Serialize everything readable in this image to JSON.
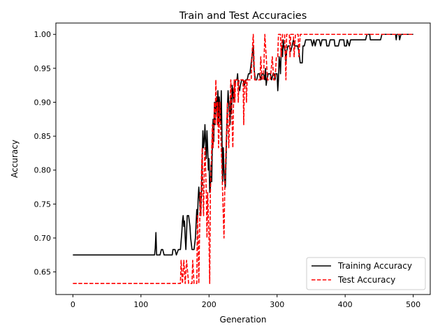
{
  "chart_data": {
    "type": "line",
    "title": "Train and Test Accuracies",
    "xlabel": "Generation",
    "ylabel": "Accuracy",
    "xlim": [
      -25,
      525
    ],
    "ylim": [
      0.6167,
      1.0167
    ],
    "xticks": [
      0,
      100,
      200,
      300,
      400,
      500
    ],
    "xtick_labels": [
      "0",
      "100",
      "200",
      "300",
      "400",
      "500"
    ],
    "yticks": [
      0.65,
      0.7,
      0.75,
      0.8,
      0.85,
      0.9,
      0.95,
      1.0
    ],
    "ytick_labels": [
      "0.65",
      "0.70",
      "0.75",
      "0.80",
      "0.85",
      "0.90",
      "0.95",
      "1.00"
    ],
    "grid": false,
    "legend_position": "lower-right",
    "series": [
      {
        "name": "Training Accuracy",
        "color": "#000000",
        "style": "solid",
        "points": [
          [
            0,
            0.675
          ],
          [
            120,
            0.675
          ],
          [
            121,
            0.685
          ],
          [
            122,
            0.708
          ],
          [
            123,
            0.675
          ],
          [
            128,
            0.675
          ],
          [
            130,
            0.683
          ],
          [
            132,
            0.683
          ],
          [
            134,
            0.675
          ],
          [
            146,
            0.675
          ],
          [
            147,
            0.683
          ],
          [
            150,
            0.683
          ],
          [
            152,
            0.675
          ],
          [
            155,
            0.683
          ],
          [
            158,
            0.683
          ],
          [
            160,
            0.708
          ],
          [
            161,
            0.725
          ],
          [
            162,
            0.733
          ],
          [
            163,
            0.717
          ],
          [
            164,
            0.725
          ],
          [
            165,
            0.7
          ],
          [
            166,
            0.683
          ],
          [
            168,
            0.733
          ],
          [
            170,
            0.733
          ],
          [
            172,
            0.717
          ],
          [
            173,
            0.7
          ],
          [
            175,
            0.683
          ],
          [
            178,
            0.683
          ],
          [
            180,
            0.7
          ],
          [
            182,
            0.742
          ],
          [
            183,
            0.725
          ],
          [
            184,
            0.758
          ],
          [
            185,
            0.775
          ],
          [
            186,
            0.758
          ],
          [
            187,
            0.742
          ],
          [
            188,
            0.733
          ],
          [
            189,
            0.775
          ],
          [
            190,
            0.817
          ],
          [
            191,
            0.858
          ],
          [
            192,
            0.833
          ],
          [
            193,
            0.842
          ],
          [
            194,
            0.867
          ],
          [
            195,
            0.842
          ],
          [
            196,
            0.817
          ],
          [
            197,
            0.858
          ],
          [
            198,
            0.833
          ],
          [
            199,
            0.8
          ],
          [
            200,
            0.817
          ],
          [
            201,
            0.767
          ],
          [
            202,
            0.775
          ],
          [
            203,
            0.808
          ],
          [
            204,
            0.783
          ],
          [
            205,
            0.85
          ],
          [
            206,
            0.875
          ],
          [
            207,
            0.842
          ],
          [
            208,
            0.9
          ],
          [
            209,
            0.867
          ],
          [
            210,
            0.9
          ],
          [
            211,
            0.908
          ],
          [
            212,
            0.883
          ],
          [
            213,
            0.917
          ],
          [
            214,
            0.867
          ],
          [
            215,
            0.908
          ],
          [
            216,
            0.892
          ],
          [
            217,
            0.867
          ],
          [
            218,
            0.917
          ],
          [
            219,
            0.85
          ],
          [
            220,
            0.783
          ],
          [
            221,
            0.833
          ],
          [
            222,
            0.8
          ],
          [
            223,
            0.783
          ],
          [
            224,
            0.775
          ],
          [
            225,
            0.817
          ],
          [
            226,
            0.858
          ],
          [
            227,
            0.892
          ],
          [
            228,
            0.917
          ],
          [
            229,
            0.9
          ],
          [
            230,
            0.883
          ],
          [
            231,
            0.867
          ],
          [
            232,
            0.908
          ],
          [
            233,
            0.883
          ],
          [
            234,
            0.925
          ],
          [
            235,
            0.917
          ],
          [
            236,
            0.9
          ],
          [
            237,
            0.917
          ],
          [
            238,
            0.925
          ],
          [
            239,
            0.933
          ],
          [
            241,
            0.933
          ],
          [
            242,
            0.942
          ],
          [
            243,
            0.925
          ],
          [
            245,
            0.917
          ],
          [
            246,
            0.925
          ],
          [
            248,
            0.933
          ],
          [
            250,
            0.933
          ],
          [
            252,
            0.925
          ],
          [
            254,
            0.933
          ],
          [
            256,
            0.933
          ],
          [
            258,
            0.942
          ],
          [
            260,
            0.942
          ],
          [
            262,
            0.958
          ],
          [
            264,
            0.975
          ],
          [
            265,
            0.983
          ],
          [
            266,
            0.95
          ],
          [
            267,
            0.942
          ],
          [
            268,
            0.933
          ],
          [
            270,
            0.933
          ],
          [
            272,
            0.942
          ],
          [
            274,
            0.942
          ],
          [
            276,
            0.933
          ],
          [
            278,
            0.942
          ],
          [
            280,
            0.942
          ],
          [
            282,
            0.933
          ],
          [
            283,
            0.95
          ],
          [
            284,
            0.925
          ],
          [
            285,
            0.933
          ],
          [
            287,
            0.942
          ],
          [
            290,
            0.942
          ],
          [
            292,
            0.933
          ],
          [
            294,
            0.942
          ],
          [
            296,
            0.942
          ],
          [
            297,
            0.933
          ],
          [
            298,
            0.942
          ],
          [
            300,
            0.942
          ],
          [
            301,
            0.917
          ],
          [
            302,
            0.933
          ],
          [
            303,
            0.967
          ],
          [
            304,
            0.958
          ],
          [
            305,
            0.942
          ],
          [
            306,
            0.975
          ],
          [
            307,
            0.983
          ],
          [
            308,
            0.967
          ],
          [
            309,
            0.992
          ],
          [
            310,
            0.983
          ],
          [
            312,
            0.975
          ],
          [
            313,
            0.958
          ],
          [
            314,
            0.975
          ],
          [
            316,
            0.983
          ],
          [
            318,
            0.983
          ],
          [
            320,
            0.975
          ],
          [
            322,
            0.983
          ],
          [
            324,
            0.992
          ],
          [
            326,
            0.983
          ],
          [
            330,
            0.983
          ],
          [
            332,
            0.975
          ],
          [
            334,
            0.958
          ],
          [
            337,
            0.958
          ],
          [
            338,
            0.983
          ],
          [
            340,
            0.983
          ],
          [
            342,
            0.992
          ],
          [
            350,
            0.992
          ],
          [
            352,
            0.983
          ],
          [
            354,
            0.992
          ],
          [
            356,
            0.983
          ],
          [
            358,
            0.992
          ],
          [
            362,
            0.992
          ],
          [
            364,
            0.983
          ],
          [
            366,
            0.992
          ],
          [
            372,
            0.992
          ],
          [
            373,
            0.983
          ],
          [
            376,
            0.983
          ],
          [
            378,
            0.992
          ],
          [
            384,
            0.992
          ],
          [
            385,
            0.983
          ],
          [
            390,
            0.983
          ],
          [
            392,
            0.992
          ],
          [
            398,
            0.992
          ],
          [
            399,
            0.983
          ],
          [
            402,
            0.983
          ],
          [
            403,
            0.992
          ],
          [
            406,
            0.983
          ],
          [
            408,
            0.992
          ],
          [
            410,
            0.992
          ],
          [
            430,
            0.992
          ],
          [
            432,
            1.0
          ],
          [
            436,
            1.0
          ],
          [
            437,
            0.992
          ],
          [
            452,
            0.992
          ],
          [
            454,
            1.0
          ],
          [
            474,
            1.0
          ],
          [
            475,
            0.992
          ],
          [
            476,
            1.0
          ],
          [
            479,
            1.0
          ],
          [
            480,
            0.992
          ],
          [
            482,
            1.0
          ],
          [
            500,
            1.0
          ]
        ]
      },
      {
        "name": "Test Accuracy",
        "color": "#ff0000",
        "style": "dashed",
        "points": [
          [
            0,
            0.633
          ],
          [
            158,
            0.633
          ],
          [
            159,
            0.667
          ],
          [
            161,
            0.633
          ],
          [
            163,
            0.667
          ],
          [
            165,
            0.633
          ],
          [
            167,
            0.667
          ],
          [
            170,
            0.633
          ],
          [
            175,
            0.633
          ],
          [
            176,
            0.667
          ],
          [
            178,
            0.633
          ],
          [
            182,
            0.633
          ],
          [
            183,
            0.733
          ],
          [
            184,
            0.7
          ],
          [
            185,
            0.633
          ],
          [
            186,
            0.7
          ],
          [
            187,
            0.767
          ],
          [
            188,
            0.733
          ],
          [
            189,
            0.8
          ],
          [
            190,
            0.833
          ],
          [
            191,
            0.767
          ],
          [
            192,
            0.733
          ],
          [
            193,
            0.8
          ],
          [
            194,
            0.833
          ],
          [
            195,
            0.8
          ],
          [
            196,
            0.767
          ],
          [
            197,
            0.7
          ],
          [
            198,
            0.767
          ],
          [
            199,
            0.733
          ],
          [
            200,
            0.7
          ],
          [
            201,
            0.633
          ],
          [
            202,
            0.767
          ],
          [
            203,
            0.8
          ],
          [
            204,
            0.833
          ],
          [
            205,
            0.867
          ],
          [
            206,
            0.833
          ],
          [
            207,
            0.867
          ],
          [
            208,
            0.9
          ],
          [
            209,
            0.867
          ],
          [
            210,
            0.933
          ],
          [
            211,
            0.9
          ],
          [
            212,
            0.867
          ],
          [
            213,
            0.9
          ],
          [
            214,
            0.833
          ],
          [
            215,
            0.867
          ],
          [
            216,
            0.9
          ],
          [
            217,
            0.867
          ],
          [
            218,
            0.833
          ],
          [
            219,
            0.8
          ],
          [
            220,
            0.767
          ],
          [
            221,
            0.733
          ],
          [
            222,
            0.7
          ],
          [
            223,
            0.767
          ],
          [
            224,
            0.8
          ],
          [
            225,
            0.833
          ],
          [
            226,
            0.867
          ],
          [
            227,
            0.9
          ],
          [
            228,
            0.867
          ],
          [
            229,
            0.833
          ],
          [
            230,
            0.867
          ],
          [
            231,
            0.9
          ],
          [
            232,
            0.933
          ],
          [
            233,
            0.9
          ],
          [
            234,
            0.867
          ],
          [
            235,
            0.833
          ],
          [
            236,
            0.9
          ],
          [
            237,
            0.933
          ],
          [
            238,
            0.9
          ],
          [
            239,
            0.933
          ],
          [
            242,
            0.933
          ],
          [
            243,
            0.9
          ],
          [
            244,
            0.933
          ],
          [
            250,
            0.933
          ],
          [
            251,
            0.867
          ],
          [
            252,
            0.933
          ],
          [
            254,
            0.933
          ],
          [
            255,
            0.9
          ],
          [
            256,
            0.933
          ],
          [
            262,
            0.933
          ],
          [
            263,
            0.967
          ],
          [
            265,
            1.0
          ],
          [
            266,
            0.967
          ],
          [
            267,
            0.933
          ],
          [
            270,
            0.933
          ],
          [
            272,
            0.933
          ],
          [
            275,
            0.933
          ],
          [
            276,
            0.967
          ],
          [
            278,
            0.933
          ],
          [
            280,
            0.933
          ],
          [
            282,
            1.0
          ],
          [
            284,
            0.967
          ],
          [
            286,
            0.933
          ],
          [
            288,
            0.933
          ],
          [
            290,
            0.933
          ],
          [
            293,
            0.967
          ],
          [
            295,
            0.933
          ],
          [
            297,
            0.933
          ],
          [
            299,
            0.967
          ],
          [
            301,
            0.967
          ],
          [
            302,
            1.0
          ],
          [
            305,
            1.0
          ],
          [
            306,
            0.967
          ],
          [
            308,
            1.0
          ],
          [
            311,
            1.0
          ],
          [
            312,
            0.967
          ],
          [
            313,
            0.933
          ],
          [
            314,
            1.0
          ],
          [
            318,
            1.0
          ],
          [
            319,
            0.967
          ],
          [
            320,
            1.0
          ],
          [
            324,
            1.0
          ],
          [
            325,
            0.967
          ],
          [
            327,
            1.0
          ],
          [
            331,
            1.0
          ],
          [
            332,
            0.967
          ],
          [
            334,
            1.0
          ],
          [
            500,
            1.0
          ]
        ]
      }
    ]
  }
}
